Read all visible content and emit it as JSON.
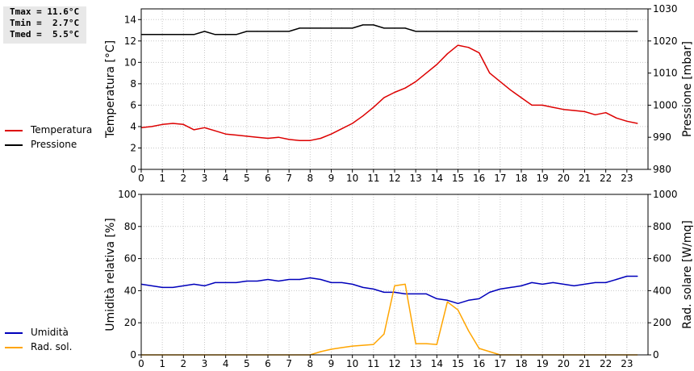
{
  "stats": {
    "tmax": "Tmax = 11.6°C",
    "tmin": "Tmin =  2.7°C",
    "tmed": "Tmed =  5.5°C"
  },
  "legend": {
    "temperatura": {
      "label": "Temperatura",
      "color": "#dd0000"
    },
    "pressione": {
      "label": "Pressione",
      "color": "#000000"
    },
    "umidita": {
      "label": "Umidità",
      "color": "#0000bb"
    },
    "radsol": {
      "label": "Rad. sol.",
      "color": "#ffa500"
    }
  },
  "chart_data": [
    {
      "type": "line",
      "ylabel": "Temperatura [°C]",
      "y2label": "Pressione [mbar]",
      "xlim": [
        0,
        24
      ],
      "ylim": [
        0,
        15
      ],
      "y2lim": [
        980,
        1030
      ],
      "xticks": [
        "0",
        "1",
        "2",
        "3",
        "4",
        "5",
        "6",
        "7",
        "8",
        "9",
        "10",
        "11",
        "12",
        "13",
        "14",
        "15",
        "16",
        "17",
        "18",
        "19",
        "20",
        "21",
        "22",
        "23"
      ],
      "yticks": [
        0,
        2,
        4,
        6,
        8,
        10,
        12,
        14
      ],
      "y2ticks": [
        980,
        990,
        1000,
        1010,
        1020,
        1030
      ],
      "grid": true,
      "series": [
        {
          "name": "Temperatura",
          "axis": "left",
          "color": "#dd0000",
          "x": [
            0,
            0.5,
            1,
            1.5,
            2,
            2.5,
            3,
            3.5,
            4,
            4.5,
            5,
            5.5,
            6,
            6.5,
            7,
            7.5,
            8,
            8.5,
            9,
            9.5,
            10,
            10.5,
            11,
            11.5,
            12,
            12.5,
            13,
            13.5,
            14,
            14.5,
            15,
            15.5,
            16,
            16.5,
            17,
            17.5,
            18,
            18.5,
            19,
            19.5,
            20,
            20.5,
            21,
            21.5,
            22,
            22.5,
            23,
            23.5
          ],
          "values": [
            3.9,
            4.0,
            4.2,
            4.3,
            4.2,
            3.7,
            3.9,
            3.6,
            3.3,
            3.2,
            3.1,
            3.0,
            2.9,
            3.0,
            2.8,
            2.7,
            2.7,
            2.9,
            3.3,
            3.8,
            4.3,
            5.0,
            5.8,
            6.7,
            7.2,
            7.6,
            8.2,
            9.0,
            9.8,
            10.8,
            11.6,
            11.4,
            10.9,
            9.0,
            8.2,
            7.4,
            6.7,
            6.0,
            6.0,
            5.8,
            5.6,
            5.5,
            5.4,
            5.1,
            5.3,
            4.8,
            4.5,
            4.3
          ]
        },
        {
          "name": "Pressione",
          "axis": "right",
          "color": "#000000",
          "x": [
            0,
            0.5,
            1,
            1.5,
            2,
            2.5,
            3,
            3.5,
            4,
            4.5,
            5,
            5.5,
            6,
            6.5,
            7,
            7.5,
            8,
            8.5,
            9,
            9.5,
            10,
            10.5,
            11,
            11.5,
            12,
            12.5,
            13,
            13.5,
            14,
            14.5,
            15,
            15.5,
            16,
            16.5,
            17,
            17.5,
            18,
            18.5,
            19,
            19.5,
            20,
            20.5,
            21,
            21.5,
            22,
            22.5,
            23,
            23.5
          ],
          "values": [
            1022,
            1022,
            1022,
            1022,
            1022,
            1022,
            1023,
            1022,
            1022,
            1022,
            1023,
            1023,
            1023,
            1023,
            1023,
            1024,
            1024,
            1024,
            1024,
            1024,
            1024,
            1025,
            1025,
            1024,
            1024,
            1024,
            1023,
            1023,
            1023,
            1023,
            1023,
            1023,
            1023,
            1023,
            1023,
            1023,
            1023,
            1023,
            1023,
            1023,
            1023,
            1023,
            1023,
            1023,
            1023,
            1023,
            1023,
            1023
          ]
        }
      ]
    },
    {
      "type": "line",
      "ylabel": "Umidità relativa [%]",
      "y2label": "Rad. solare [W/mq]",
      "xlim": [
        0,
        24
      ],
      "ylim": [
        0,
        100
      ],
      "y2lim": [
        0,
        1000
      ],
      "xticks": [
        "0",
        "1",
        "2",
        "3",
        "4",
        "5",
        "6",
        "7",
        "8",
        "9",
        "10",
        "11",
        "12",
        "13",
        "14",
        "15",
        "16",
        "17",
        "18",
        "19",
        "20",
        "21",
        "22",
        "23"
      ],
      "yticks": [
        0,
        20,
        40,
        60,
        80,
        100
      ],
      "y2ticks": [
        0,
        200,
        400,
        600,
        800,
        1000
      ],
      "grid": true,
      "series": [
        {
          "name": "Umidità",
          "axis": "left",
          "color": "#0000bb",
          "x": [
            0,
            0.5,
            1,
            1.5,
            2,
            2.5,
            3,
            3.5,
            4,
            4.5,
            5,
            5.5,
            6,
            6.5,
            7,
            7.5,
            8,
            8.5,
            9,
            9.5,
            10,
            10.5,
            11,
            11.5,
            12,
            12.5,
            13,
            13.5,
            14,
            14.5,
            15,
            15.5,
            16,
            16.5,
            17,
            17.5,
            18,
            18.5,
            19,
            19.5,
            20,
            20.5,
            21,
            21.5,
            22,
            22.5,
            23,
            23.5
          ],
          "values": [
            44,
            43,
            42,
            42,
            43,
            44,
            43,
            45,
            45,
            45,
            46,
            46,
            47,
            46,
            47,
            47,
            48,
            47,
            45,
            45,
            44,
            42,
            41,
            39,
            39,
            38,
            38,
            38,
            35,
            34,
            32,
            34,
            35,
            39,
            41,
            42,
            43,
            45,
            44,
            45,
            44,
            43,
            44,
            45,
            45,
            47,
            49,
            49
          ]
        },
        {
          "name": "Rad. sol.",
          "axis": "right",
          "color": "#ffa500",
          "x": [
            0,
            1,
            2,
            3,
            4,
            5,
            6,
            7,
            8,
            8.5,
            9,
            9.5,
            10,
            10.5,
            11,
            11.5,
            12,
            12.5,
            13,
            13.5,
            14,
            14.5,
            15,
            15.5,
            16,
            16.5,
            17,
            17.5,
            18,
            19,
            20,
            21,
            22,
            23,
            23.5
          ],
          "values": [
            0,
            0,
            0,
            0,
            0,
            0,
            0,
            0,
            0,
            20,
            35,
            45,
            55,
            60,
            65,
            130,
            430,
            440,
            70,
            70,
            65,
            330,
            280,
            150,
            40,
            20,
            0,
            0,
            0,
            0,
            0,
            0,
            0,
            0,
            0
          ]
        }
      ]
    }
  ]
}
